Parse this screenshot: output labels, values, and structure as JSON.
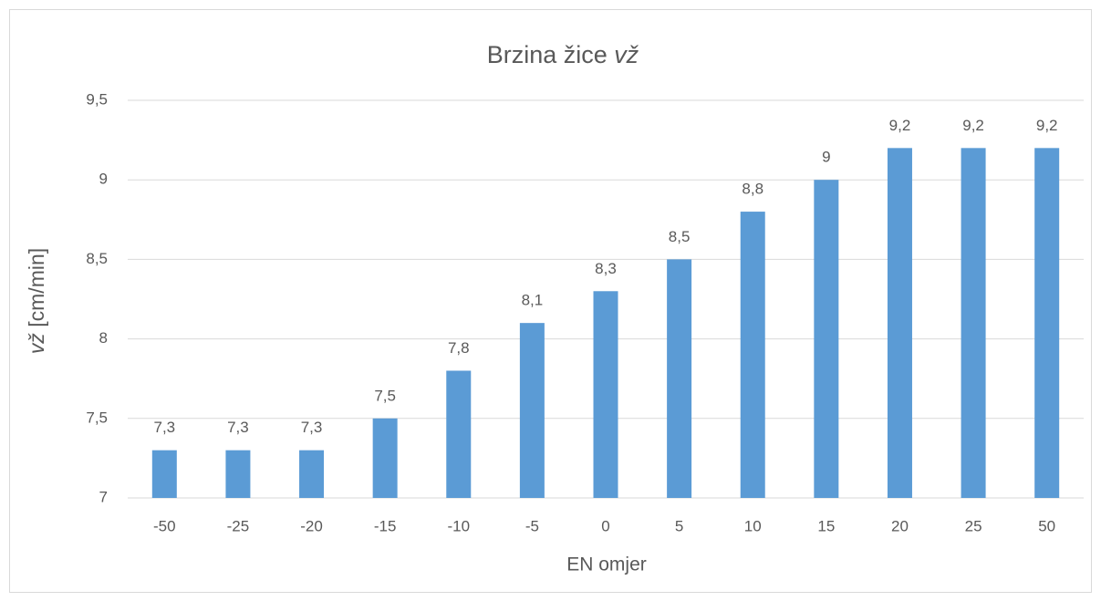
{
  "chart_data": {
    "type": "bar",
    "title": {
      "text": "Brzina žice",
      "symbol": "vž"
    },
    "x_label": "EN omjer",
    "y_label": {
      "symbol": "vž",
      "text": "[cm/min]"
    },
    "categories": [
      "-50",
      "-25",
      "-20",
      "-15",
      "-10",
      "-5",
      "0",
      "5",
      "10",
      "15",
      "20",
      "25",
      "50"
    ],
    "values": [
      7.3,
      7.3,
      7.3,
      7.5,
      7.8,
      8.1,
      8.3,
      8.5,
      8.8,
      9,
      9.2,
      9.2,
      9.2
    ],
    "value_labels": [
      "7,3",
      "7,3",
      "7,3",
      "7,5",
      "7,8",
      "8,1",
      "8,3",
      "8,5",
      "8,8",
      "9",
      "9,2",
      "9,2",
      "9,2"
    ],
    "color": "#5b9bd5",
    "ylim": [
      7,
      9.5
    ],
    "yticks": [
      7,
      {
        "value": 7.5,
        "label": "7,5"
      },
      8,
      {
        "value": 8.5,
        "label": "8,5"
      },
      9,
      {
        "value": 9.5,
        "label": "9,5"
      }
    ],
    "grid": true
  }
}
